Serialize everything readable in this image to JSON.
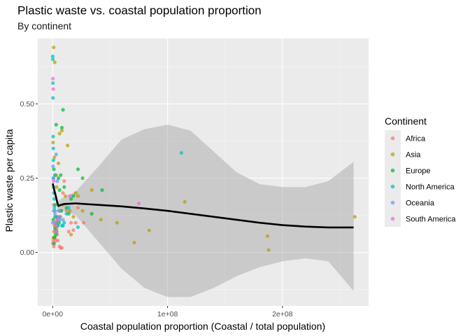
{
  "chart_data": {
    "type": "scatter",
    "title": "Plastic waste vs. coastal population proportion",
    "subtitle": "By continent",
    "xlabel": "Coastal population proportion (Coastal / total population)",
    "ylabel": "Plastic waste per capita",
    "xlim": [
      -13000000.0,
      275000000.0
    ],
    "ylim": [
      -0.18,
      0.72
    ],
    "x_ticks": [
      0,
      100000000,
      200000000
    ],
    "x_tick_labels": [
      "0e+00",
      "1e+08",
      "2e+08"
    ],
    "y_ticks": [
      0,
      0.25,
      0.5
    ],
    "y_tick_labels": [
      "0.00",
      "0.25",
      "0.50"
    ],
    "grid": true,
    "background": "#ebebeb",
    "legend": {
      "title": "Continent",
      "placement": "right",
      "entries": [
        "Africa",
        "Asia",
        "Europe",
        "North America",
        "Oceania",
        "South America"
      ],
      "colors": [
        "#F8766D",
        "#B79F00",
        "#00BA38",
        "#00BFC4",
        "#619CFF",
        "#F564E3"
      ]
    },
    "series": [
      {
        "name": "Africa",
        "color": "#F8766D",
        "x": [
          200000,
          500000,
          1000000,
          1500000,
          2000000,
          2500000,
          3000000,
          3500000,
          4000000,
          5000000,
          6000000,
          7000000,
          8000000,
          9000000,
          10000000,
          12000000,
          14000000,
          16000000,
          18000000,
          20000000,
          22000000,
          27000000,
          800000,
          1800000,
          2800000,
          4500000
        ],
        "y": [
          0.03,
          0.04,
          0.02,
          0.09,
          0.05,
          0.1,
          0.26,
          0.08,
          0.06,
          0.14,
          0.02,
          0.015,
          0.015,
          0.2,
          0.24,
          0.14,
          0.07,
          0.1,
          0.075,
          0.1,
          0.15,
          0.1,
          0.16,
          0.12,
          0.04,
          0.04
        ]
      },
      {
        "name": "Asia",
        "color": "#B79F00",
        "x": [
          800000,
          1800000,
          300000,
          1500000,
          2500000,
          3500000,
          5000000,
          6000000,
          8000000,
          13000000,
          16000000,
          22000000,
          26000000,
          34000000,
          42000000,
          56000000,
          71000000,
          84000000,
          115000000,
          187000000,
          188000000,
          263000000,
          500000,
          1200000,
          2200000,
          4000000,
          7000000,
          9000000,
          11000000,
          15000000,
          18000000,
          20000000
        ],
        "y": [
          0.69,
          0.64,
          0.37,
          0.32,
          0.26,
          0.22,
          0.3,
          0.4,
          0.41,
          0.36,
          0.06,
          0.19,
          0.14,
          0.21,
          0.11,
          0.1,
          0.033,
          0.074,
          0.17,
          0.055,
          0.008,
          0.12,
          0.05,
          0.07,
          0.09,
          0.11,
          0.14,
          0.16,
          0.19,
          0.14,
          0.12,
          0.2
        ]
      },
      {
        "name": "Europe",
        "color": "#00BA38",
        "x": [
          500000,
          1000000,
          2000000,
          3000000,
          4000000,
          5000000,
          6000000,
          7000000,
          8000000,
          9000000,
          10000000,
          12000000,
          14000000,
          16000000,
          18000000,
          22000000,
          26000000,
          34000000,
          43000000,
          1500000,
          2500000,
          3500000,
          4500000,
          5500000,
          6500000,
          7500000,
          1200000,
          2200000
        ],
        "y": [
          0.11,
          0.28,
          0.08,
          0.43,
          0.12,
          0.25,
          0.21,
          0.26,
          0.42,
          0.48,
          0.22,
          0.15,
          0.13,
          0.18,
          0.19,
          0.28,
          0.25,
          0.13,
          0.21,
          0.05,
          0.06,
          0.07,
          0.09,
          0.1,
          0.12,
          0.14,
          0.03,
          0.16
        ]
      },
      {
        "name": "North America",
        "color": "#00BFC4",
        "x": [
          0,
          100000,
          200000,
          300000,
          400000,
          500000,
          600000,
          700000,
          800000,
          1000000,
          1200000,
          1500000,
          2000000,
          2500000,
          3000000,
          4000000,
          6000000,
          8000000,
          9000000,
          10000000,
          12000000,
          14000000,
          22000000,
          112000000,
          1800000
        ],
        "y": [
          0.66,
          0.65,
          0.57,
          0.52,
          0.39,
          0.35,
          0.31,
          0.25,
          0.22,
          0.2,
          0.18,
          0.15,
          0.14,
          0.12,
          0.1,
          0.09,
          0.11,
          0.09,
          0.09,
          0.1,
          0.13,
          0.15,
          0.085,
          0.335,
          0.26
        ]
      },
      {
        "name": "Oceania",
        "color": "#619CFF",
        "x": [
          100000,
          300000,
          600000,
          900000,
          1500000,
          2000000,
          3000000,
          4000000,
          6000000,
          9000000
        ],
        "y": [
          0.1,
          0.29,
          0.25,
          0.14,
          0.2,
          0.13,
          0.33,
          0.24,
          0.14,
          0.11
        ]
      },
      {
        "name": "South America",
        "color": "#F564E3",
        "x": [
          200000,
          500000,
          800000,
          1500000,
          2500000,
          3000000,
          4000000,
          6000000,
          15000000,
          75000000
        ],
        "y": [
          0.585,
          0.55,
          0.24,
          0.1,
          0.07,
          0.09,
          0.11,
          0.12,
          0.19,
          0.165
        ]
      }
    ],
    "smooth": {
      "x": [
        0,
        1000000,
        2000000,
        3000000,
        4000000,
        5000000,
        7000000,
        10000000,
        20000000,
        40000000,
        60000000,
        80000000,
        100000000,
        120000000,
        140000000,
        160000000,
        180000000,
        200000000,
        220000000,
        240000000,
        262000000
      ],
      "y": [
        0.232,
        0.215,
        0.2,
        0.185,
        0.168,
        0.156,
        0.16,
        0.163,
        0.165,
        0.16,
        0.155,
        0.148,
        0.14,
        0.13,
        0.12,
        0.11,
        0.1,
        0.092,
        0.087,
        0.084,
        0.084
      ],
      "ymin": [
        0.218,
        0.2,
        0.185,
        0.168,
        0.152,
        0.14,
        0.14,
        0.14,
        0.125,
        0.035,
        -0.055,
        -0.12,
        -0.15,
        -0.15,
        -0.12,
        -0.08,
        -0.05,
        -0.03,
        -0.02,
        -0.03,
        -0.13
      ],
      "ymax": [
        0.246,
        0.23,
        0.215,
        0.2,
        0.184,
        0.172,
        0.18,
        0.186,
        0.205,
        0.29,
        0.38,
        0.415,
        0.43,
        0.41,
        0.34,
        0.27,
        0.23,
        0.22,
        0.22,
        0.24,
        0.305
      ]
    }
  }
}
